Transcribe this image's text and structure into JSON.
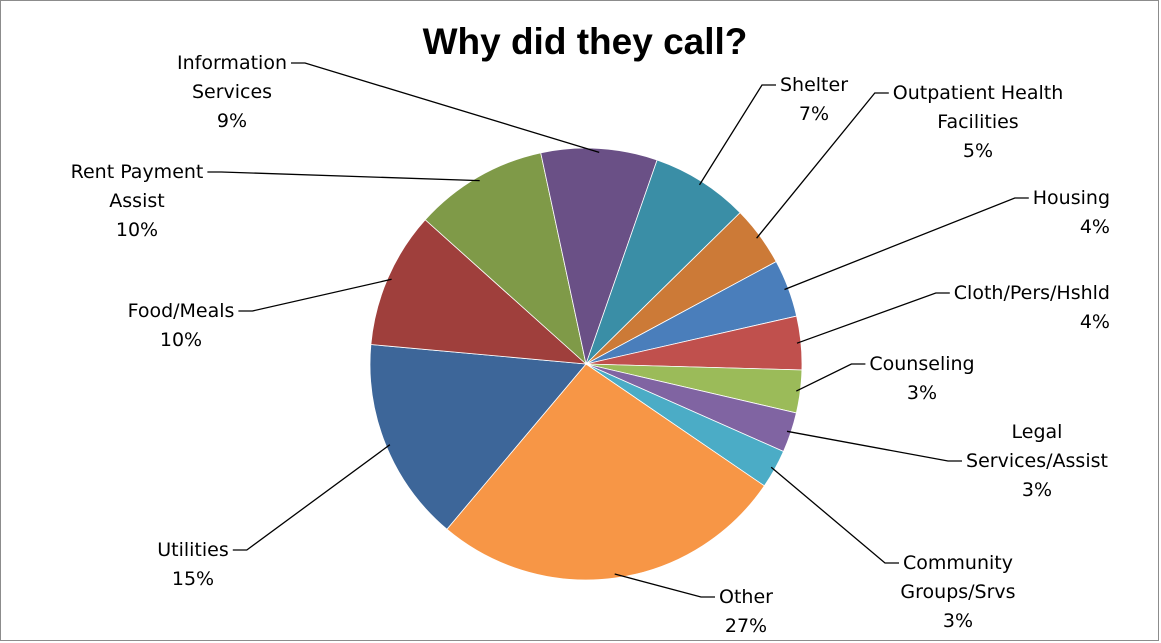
{
  "chart_data": {
    "type": "pie",
    "title": "Why did they call?",
    "slices": [
      {
        "label_lines": [
          "Outpatient Health",
          "Facilities"
        ],
        "pct_text": "5%",
        "value": 4.5,
        "color": "#cc7a37"
      },
      {
        "label_lines": [
          "Housing"
        ],
        "pct_text": "4%",
        "value": 4.3,
        "color": "#4a7ebb"
      },
      {
        "label_lines": [
          "Cloth/Pers/Hshld"
        ],
        "pct_text": "4%",
        "value": 4.0,
        "color": "#c0504d"
      },
      {
        "label_lines": [
          "Counseling"
        ],
        "pct_text": "3%",
        "value": 3.2,
        "color": "#9bbb59"
      },
      {
        "label_lines": [
          "Legal",
          "Services/Assist"
        ],
        "pct_text": "3%",
        "value": 3.0,
        "color": "#8064a2"
      },
      {
        "label_lines": [
          "Community",
          "Groups/Srvs"
        ],
        "pct_text": "3%",
        "value": 2.9,
        "color": "#4bacc6"
      },
      {
        "label_lines": [
          "Other"
        ],
        "pct_text": "27%",
        "value": 26.6,
        "color": "#f79646"
      },
      {
        "label_lines": [
          "Utilities"
        ],
        "pct_text": "15%",
        "value": 15.3,
        "color": "#3d6699"
      },
      {
        "label_lines": [
          "Food/Meals"
        ],
        "pct_text": "10%",
        "value": 10.2,
        "color": "#9f3f3c"
      },
      {
        "label_lines": [
          "Rent Payment",
          "Assist"
        ],
        "pct_text": "10%",
        "value": 10.0,
        "color": "#7f9a48"
      },
      {
        "label_lines": [
          "Information",
          "Services"
        ],
        "pct_text": "9%",
        "value": 8.7,
        "color": "#6a5086"
      },
      {
        "label_lines": [
          "Shelter"
        ],
        "pct_text": "7%",
        "value": 7.3,
        "color": "#3a8ea6"
      }
    ]
  }
}
